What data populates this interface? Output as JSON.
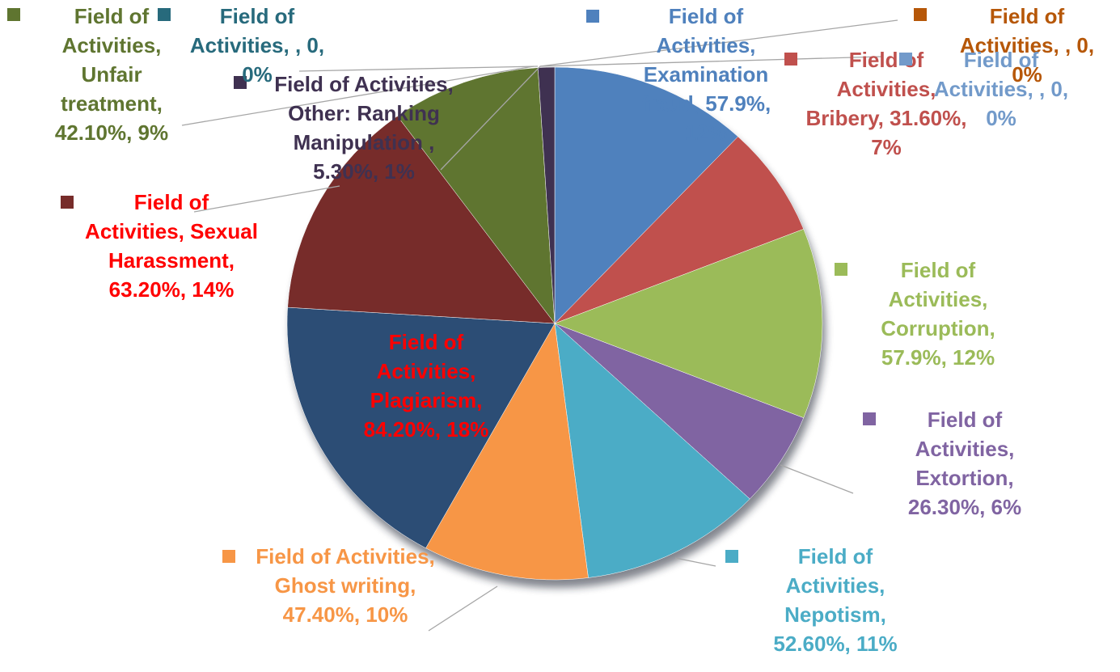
{
  "chart_data": {
    "type": "pie",
    "categories": [
      "Examination fraud",
      "Bribery",
      "Corruption",
      "Extortion",
      "Nepotism",
      "Ghost writing",
      "Plagiarism",
      "Sexual Harassment",
      "Unfair treatment",
      "Other: Ranking Manipulation",
      null,
      null,
      null
    ],
    "values": [
      12,
      7,
      12,
      6,
      11,
      10,
      18,
      14,
      9,
      1,
      0,
      0,
      0
    ],
    "value_labels": [
      "Field of Activities, Examination fraud, 57.9%, 12%",
      "Field of Activities, Bribery, 31.60%, 7%",
      "Field of Activities, Corruption, 57.9%, 12%",
      "Field of Activities, Extortion, 26.30%, 6%",
      "Field of Activities, Nepotism, 52.60%, 11%",
      "Field of Activities, Ghost writing, 47.40%, 10%",
      "Field of Activities, Plagiarism, 84.20%, 18%",
      "Field of Activities, Sexual Harassment, 63.20%, 14%",
      "Field of Activities, Unfair treatment, 42.10%, 9%",
      "Field of Activities, Other: Ranking Manipulation , 5.30%, 1%",
      "Field of Activities, , 0, 0%",
      "Field of Activities, , 0, 0%",
      "Field of Activities, , 0, 0%"
    ],
    "colors": [
      "#4f81bd",
      "#c0504d",
      "#9bbb59",
      "#8064a2",
      "#4bacc6",
      "#f79646",
      "#2c4d75",
      "#772c2a",
      "#5f7530",
      "#3f3151",
      "#276a7c",
      "#b65708",
      "#729aca"
    ],
    "label_colors": [
      "#4f81bd",
      "#c0504d",
      "#9bbb59",
      "#8064a2",
      "#4bacc6",
      "#f79646",
      "#ff0000",
      "#ff0000",
      "#5f7530",
      "#3f3151",
      "#276a7c",
      "#b65708",
      "#729aca"
    ]
  }
}
